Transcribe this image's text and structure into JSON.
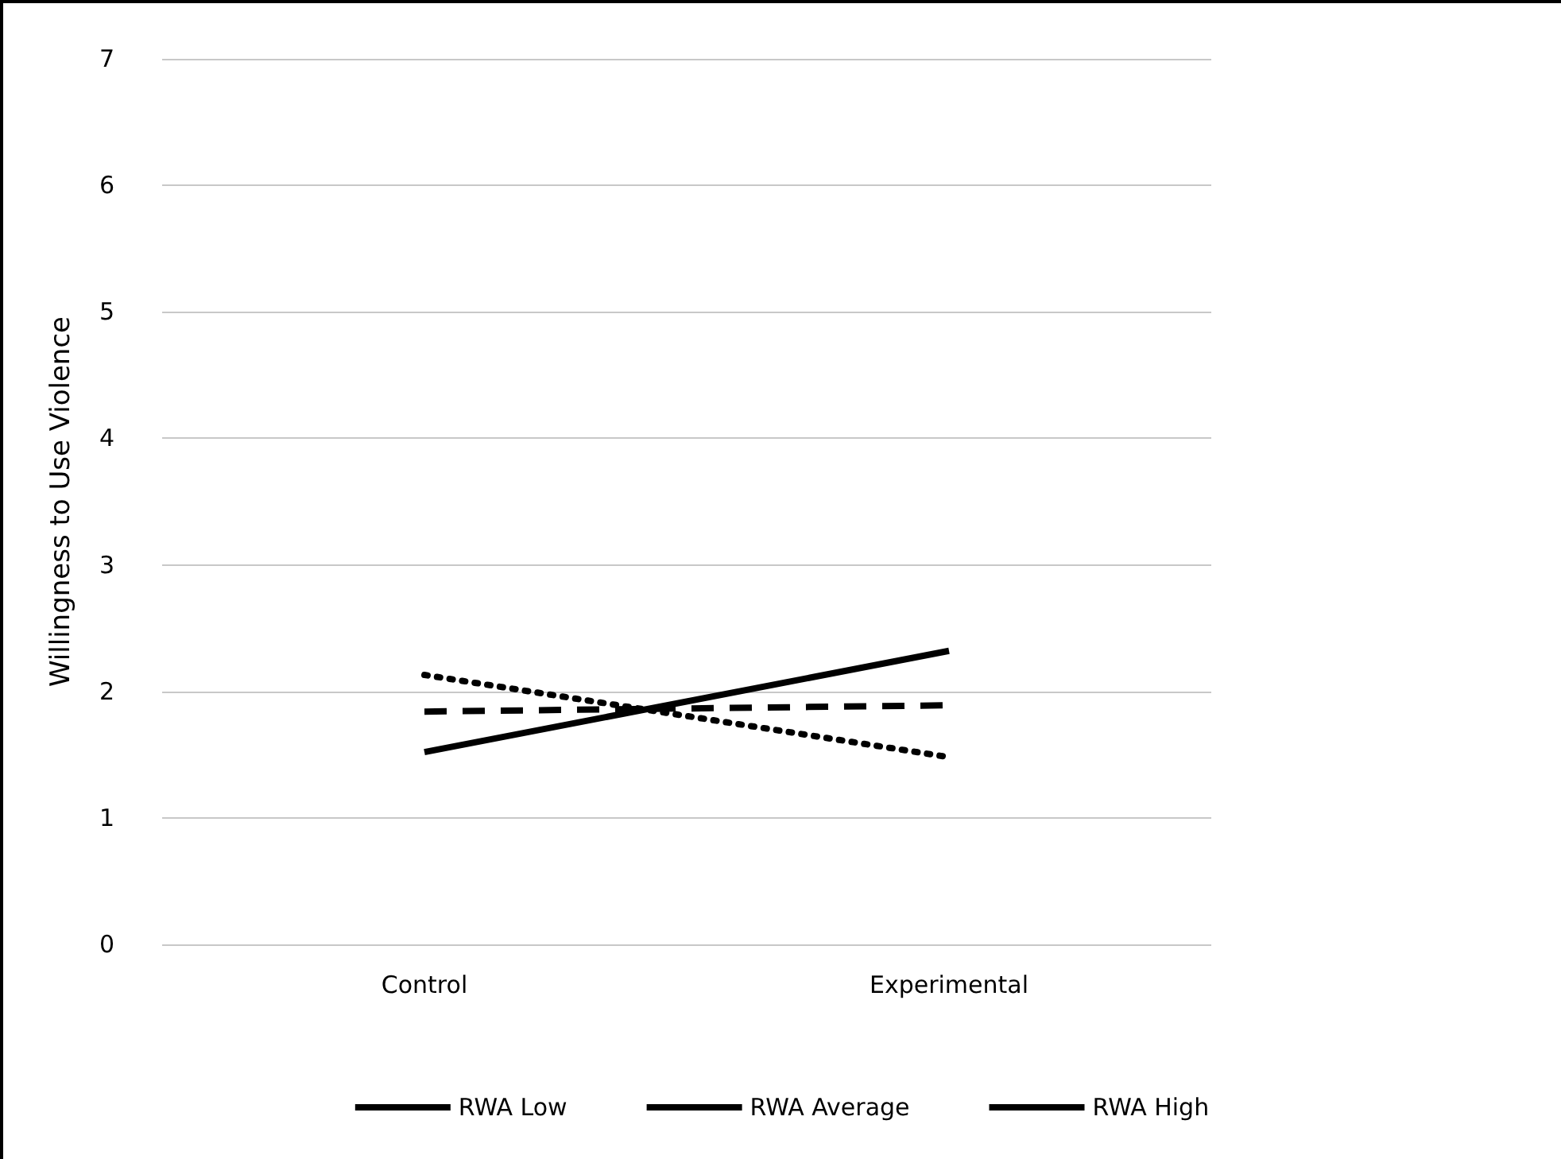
{
  "chart_data": {
    "type": "line",
    "ylabel": "Willingness to Use Violence",
    "categories": [
      "Control",
      "Experimental"
    ],
    "series": [
      {
        "name": "RWA Low",
        "color": "#000000",
        "line_style": "dotted",
        "values": [
          2.13,
          1.48
        ]
      },
      {
        "name": "RWA Average",
        "color": "#000000",
        "line_style": "dashed",
        "values": [
          1.84,
          1.89
        ]
      },
      {
        "name": "RWA High",
        "color": "#000000",
        "line_style": "solid",
        "values": [
          1.52,
          2.32
        ]
      }
    ],
    "ylim": [
      0,
      7
    ],
    "yticks": [
      0,
      1,
      2,
      3,
      4,
      5,
      6,
      7
    ],
    "grid": "y",
    "legend": "bottom",
    "marker": "none"
  }
}
